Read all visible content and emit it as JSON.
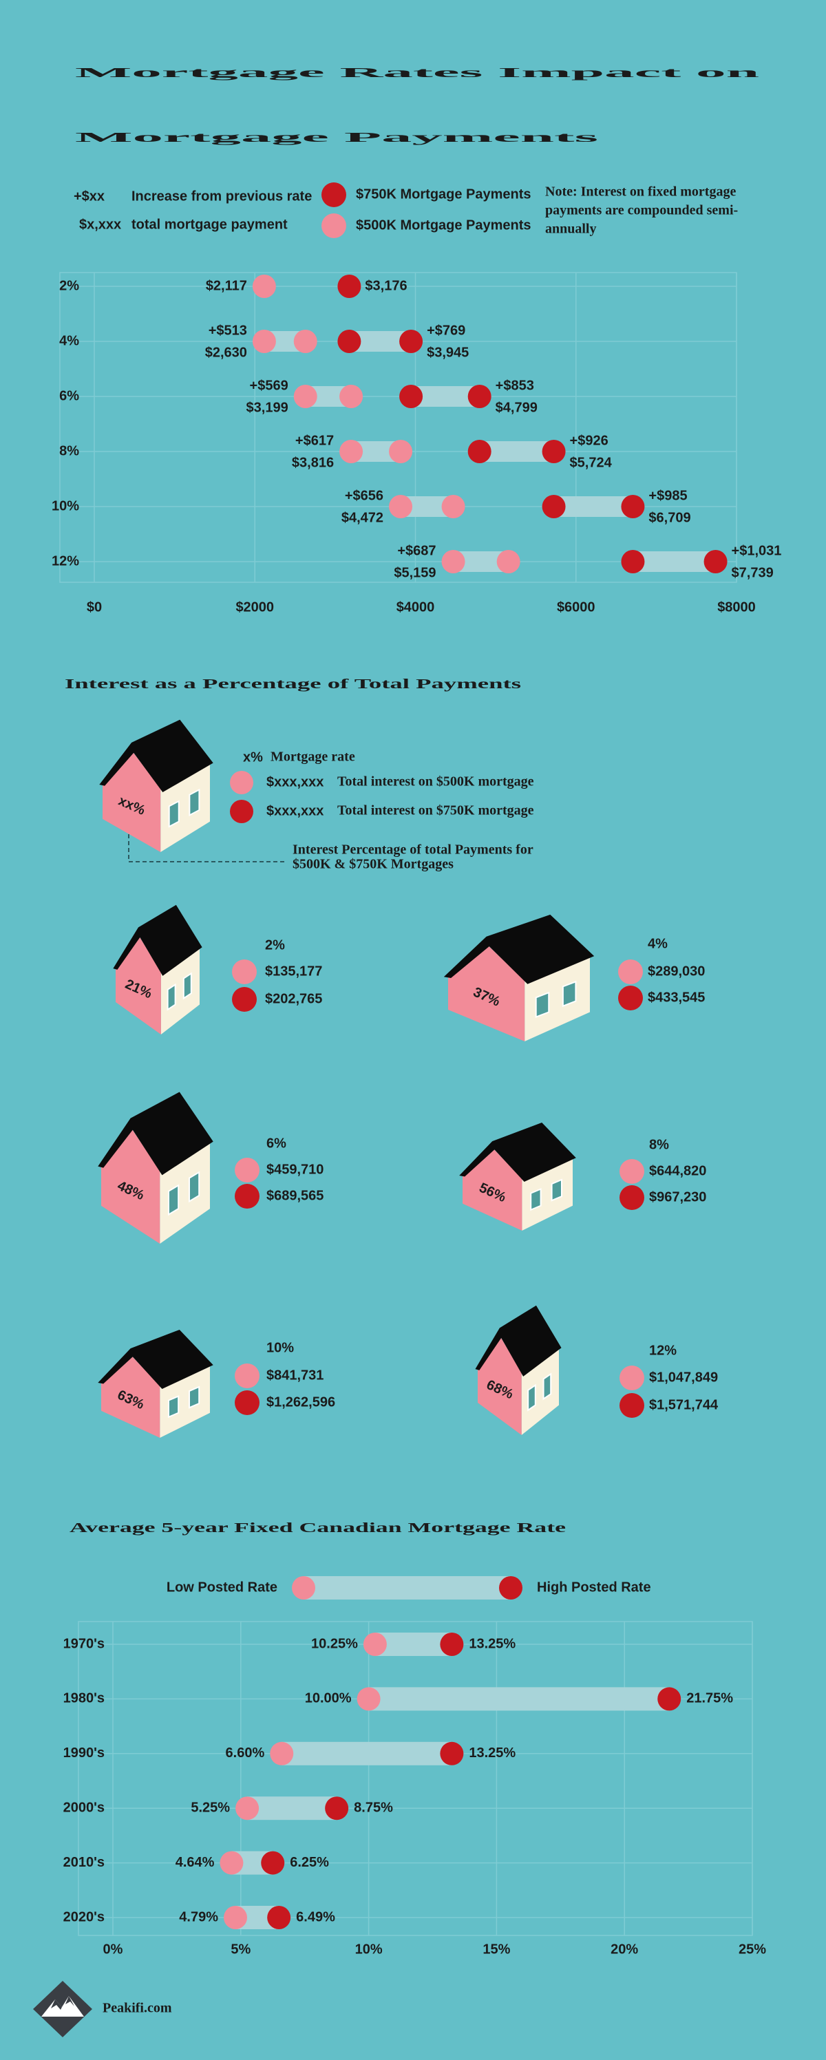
{
  "title": [
    "Mortgage Rates Impact on",
    "Mortgage Payments"
  ],
  "legend": {
    "increase_symbol": "+$xx",
    "increase_text": "Increase from previous rate",
    "total_symbol": "$x,xxx",
    "total_text": "total mortgage payment",
    "note": [
      "Note: Interest on fixed mortgage",
      "payments are compounded semi-",
      "annually"
    ]
  },
  "chart_data": [
    {
      "type": "progression",
      "categories": [
        "2%",
        "4%",
        "6%",
        "8%",
        "10%",
        "12%"
      ],
      "series": [
        {
          "name": "$750K Mortgage Payments",
          "color": "#c8181f",
          "values": [
            3176,
            3945,
            4799,
            5724,
            6709,
            7739
          ],
          "value_labels": [
            "$3,176",
            "$3,945",
            "$4,799",
            "$5,724",
            "$6,709",
            "$7,739"
          ],
          "increases": [
            null,
            769,
            853,
            926,
            985,
            1031
          ],
          "increase_labels": [
            null,
            "+$769",
            "+$853",
            "+$926",
            "+$985",
            "+$1,031"
          ]
        },
        {
          "name": "$500K Mortgage Payments",
          "color": "#f28b98",
          "values": [
            2117,
            2630,
            3199,
            3816,
            4472,
            5159
          ],
          "value_labels": [
            "$2,117",
            "$2,630",
            "$3,199",
            "$3,816",
            "$4,472",
            "$5,159"
          ],
          "increases": [
            null,
            513,
            569,
            617,
            656,
            687
          ],
          "increase_labels": [
            null,
            "+$513",
            "+$569",
            "+$617",
            "+$656",
            "+$687"
          ]
        }
      ],
      "xlim": [
        0,
        8000
      ],
      "xticks": [
        {
          "value": 0,
          "label": "$0"
        },
        {
          "value": 2000,
          "label": "$2000"
        },
        {
          "value": 4000,
          "label": "$4000"
        },
        {
          "value": 6000,
          "label": "$6000"
        },
        {
          "value": 8000,
          "label": "$8000"
        }
      ],
      "grid": true
    },
    {
      "type": "dumbbell",
      "title": "Average 5-year Fixed Canadian Mortgage Rate",
      "categories": [
        "1970's",
        "1980's",
        "1990's",
        "2000's",
        "2010's",
        "2020's"
      ],
      "series": [
        {
          "name": "Low Posted Rate",
          "color": "#f28b98",
          "values": [
            10.25,
            10.0,
            6.6,
            5.25,
            4.64,
            4.79
          ],
          "value_labels": [
            "10.25%",
            "10.00%",
            "6.60%",
            "5.25%",
            "4.64%",
            "4.79%"
          ]
        },
        {
          "name": "High Posted Rate",
          "color": "#c8181f",
          "values": [
            13.25,
            21.75,
            13.25,
            8.75,
            6.25,
            6.49
          ],
          "value_labels": [
            "13.25%",
            "21.75%",
            "13.25%",
            "8.75%",
            "6.25%",
            "6.49%"
          ]
        }
      ],
      "xlim": [
        0,
        25
      ],
      "xticks": [
        {
          "value": 0,
          "label": "0%"
        },
        {
          "value": 5,
          "label": "5%"
        },
        {
          "value": 10,
          "label": "10%"
        },
        {
          "value": 15,
          "label": "15%"
        },
        {
          "value": 20,
          "label": "20%"
        },
        {
          "value": 25,
          "label": "25%"
        }
      ],
      "grid": true
    }
  ],
  "interest": {
    "title": "Interest as a Percentage of Total Payments",
    "key": {
      "percent": "xx%",
      "rate": "x%",
      "rate_text": "Mortgage rate",
      "amount_500k": "$xxx,xxx",
      "text_500k": "Total interest on $500K mortgage",
      "amount_750k": "$xxx,xxx",
      "text_750k": "Total interest on $750K mortgage",
      "note": [
        "Interest Percentage of total Payments for",
        "$500K & $750K Mortgages"
      ]
    },
    "items": [
      {
        "rate": "2%",
        "percent": "21%",
        "interest_500k": "$135,177",
        "interest_750k": "$202,765"
      },
      {
        "rate": "4%",
        "percent": "37%",
        "interest_500k": "$289,030",
        "interest_750k": "$433,545"
      },
      {
        "rate": "6%",
        "percent": "48%",
        "interest_500k": "$459,710",
        "interest_750k": "$689,565"
      },
      {
        "rate": "8%",
        "percent": "56%",
        "interest_500k": "$644,820",
        "interest_750k": "$967,230"
      },
      {
        "rate": "10%",
        "percent": "63%",
        "interest_500k": "$841,731",
        "interest_750k": "$1,262,596"
      },
      {
        "rate": "12%",
        "percent": "68%",
        "interest_500k": "$1,047,849",
        "interest_750k": "$1,571,744"
      }
    ]
  },
  "footer": {
    "brand": "Peakifi.com"
  }
}
